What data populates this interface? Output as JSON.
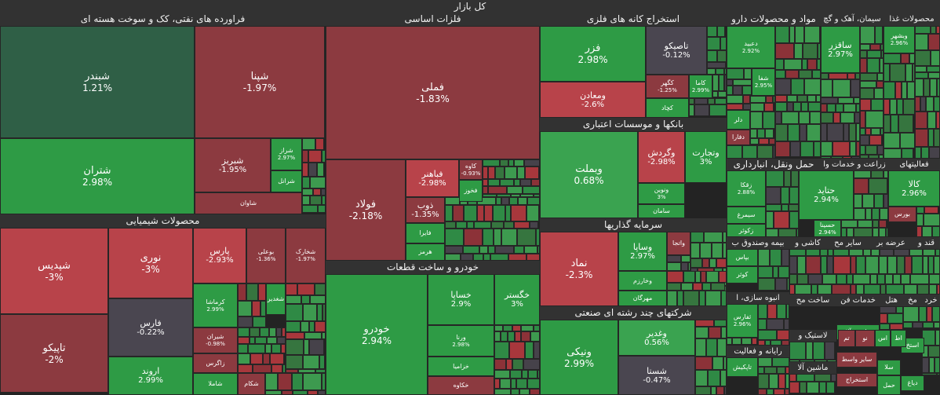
{
  "chart_data": {
    "type": "treemap",
    "title": "کل بازار",
    "colors": {
      "strong_green": "#2e9b45",
      "green": "#3aa350",
      "dark_green": "#2f5f46",
      "red": "#b8434a",
      "dark_red": "#8c3a40",
      "neutral": "#4a4650"
    },
    "sectors": [
      {
        "name": "فراورده های نفتی، کک و سوخت هسته ای"
      },
      {
        "name": "فلزات اساسی"
      },
      {
        "name": "استخراج کانه های فلزی"
      },
      {
        "name": "مواد و محصولات دارو"
      },
      {
        "name": "سیمان، آهک و گچ"
      },
      {
        "name": "محصولات غذا"
      },
      {
        "name": "بانکها و موسسات اعتباری"
      },
      {
        "name": "محصولات شیمیایی"
      },
      {
        "name": "خودرو و ساخت قطعات"
      },
      {
        "name": "سرمایه گذاریها"
      },
      {
        "name": "شرکتهای چند رشته ای صنعتی"
      },
      {
        "name": "زراعت و خدمات وا"
      },
      {
        "name": "حمل ونقل، انبارداری"
      },
      {
        "name": "فعالیتهای"
      },
      {
        "name": "بیمه وصندوق ب"
      },
      {
        "name": "کاشی و"
      },
      {
        "name": "سایر مح"
      },
      {
        "name": "عرضه بر"
      },
      {
        "name": "قند و"
      },
      {
        "name": "انبوه سازی، ا"
      },
      {
        "name": "ساخت مح"
      },
      {
        "name": "خدمات فن"
      },
      {
        "name": "هتل"
      },
      {
        "name": "مخ"
      },
      {
        "name": "خرد"
      },
      {
        "name": "لاستیک و"
      },
      {
        "name": "رایانه و فعالیت"
      },
      {
        "name": "ماشین آلا"
      }
    ],
    "symbols": [
      {
        "name": "شبندر",
        "change": 1.21
      },
      {
        "name": "شپنا",
        "change": -1.97
      },
      {
        "name": "شتران",
        "change": 2.98
      },
      {
        "name": "شبریز",
        "change": -1.95
      },
      {
        "name": "شراز",
        "change": 2.97
      },
      {
        "name": "شرانل",
        "change": null
      },
      {
        "name": "شاوان",
        "change": null
      },
      {
        "name": "فملی",
        "change": -1.83
      },
      {
        "name": "فولاد",
        "change": -2.18
      },
      {
        "name": "فباهنر",
        "change": -2.98
      },
      {
        "name": "کاوه",
        "change": -0.93
      },
      {
        "name": "فخوز",
        "change": null
      },
      {
        "name": "ذوب",
        "change": -1.35
      },
      {
        "name": "فایرا",
        "change": null
      },
      {
        "name": "هرمز",
        "change": null
      },
      {
        "name": "فزر",
        "change": 2.98
      },
      {
        "name": "تاصیکو",
        "change": -0.12
      },
      {
        "name": "ومعادن",
        "change": -2.6
      },
      {
        "name": "کگهر",
        "change": -1.25
      },
      {
        "name": "کاما",
        "change": 2.99
      },
      {
        "name": "کچاد",
        "change": null
      },
      {
        "name": "دعبید",
        "change": 2.92
      },
      {
        "name": "شفا",
        "change": 2.95
      },
      {
        "name": "دلر",
        "change": null
      },
      {
        "name": "دفارا",
        "change": null
      },
      {
        "name": "ساقزر",
        "change": 2.97
      },
      {
        "name": "وبشهر",
        "change": 2.96
      },
      {
        "name": "وبملت",
        "change": 0.68
      },
      {
        "name": "وگردش",
        "change": -2.98
      },
      {
        "name": "وتجارت",
        "change": 3.0
      },
      {
        "name": "ونوین",
        "change": 3.0
      },
      {
        "name": "سامان",
        "change": null
      },
      {
        "name": "شپدیس",
        "change": -3.0
      },
      {
        "name": "نوری",
        "change": -3.0
      },
      {
        "name": "پارس",
        "change": -2.93
      },
      {
        "name": "بوعلی",
        "change": -1.36
      },
      {
        "name": "شخارک",
        "change": -1.97
      },
      {
        "name": "تاپیکو",
        "change": -2.0
      },
      {
        "name": "فارس",
        "change": -0.22
      },
      {
        "name": "کرماشا",
        "change": 2.99
      },
      {
        "name": "شغدیر",
        "change": null
      },
      {
        "name": "شیران",
        "change": -0.98
      },
      {
        "name": "زاگرس",
        "change": null
      },
      {
        "name": "اروند",
        "change": 2.99
      },
      {
        "name": "شاملا",
        "change": null
      },
      {
        "name": "شکام",
        "change": null
      },
      {
        "name": "خودرو",
        "change": 2.94
      },
      {
        "name": "خساپا",
        "change": 2.9
      },
      {
        "name": "خگستر",
        "change": 3.0
      },
      {
        "name": "ورنا",
        "change": 2.98
      },
      {
        "name": "خزامیا",
        "change": null
      },
      {
        "name": "خکاوه",
        "change": null
      },
      {
        "name": "نماد",
        "change": -2.3
      },
      {
        "name": "وساپا",
        "change": 2.97
      },
      {
        "name": "واتجا",
        "change": null
      },
      {
        "name": "وخارزم",
        "change": null
      },
      {
        "name": "مهرگان",
        "change": null
      },
      {
        "name": "ونیکی",
        "change": 2.99
      },
      {
        "name": "وغدیر",
        "change": 0.56
      },
      {
        "name": "شستا",
        "change": -0.47
      },
      {
        "name": "زقکا",
        "change": 2.88
      },
      {
        "name": "سیمرغ",
        "change": null
      },
      {
        "name": "زکوثر",
        "change": null
      },
      {
        "name": "حتاید",
        "change": 2.94
      },
      {
        "name": "حسینا",
        "change": 2.94
      },
      {
        "name": "کالا",
        "change": 2.96
      },
      {
        "name": "بورس",
        "change": null
      },
      {
        "name": "بپاس",
        "change": null
      },
      {
        "name": "کوثر",
        "change": null
      },
      {
        "name": "ثفارس",
        "change": 2.96
      },
      {
        "name": "تاپکیش",
        "change": null
      },
      {
        "name": "ماشین آلا",
        "change": null
      },
      {
        "name": "سایر واسط",
        "change": null
      },
      {
        "name": "سلا",
        "change": null
      },
      {
        "name": "استخ",
        "change": null
      },
      {
        "name": "استخراج",
        "change": null
      },
      {
        "name": "دیاغ",
        "change": null
      },
      {
        "name": "حمل",
        "change": null
      },
      {
        "name": "نو",
        "change": null
      },
      {
        "name": "اس",
        "change": null
      },
      {
        "name": "اط",
        "change": null
      },
      {
        "name": "تم",
        "change": null
      }
    ]
  }
}
